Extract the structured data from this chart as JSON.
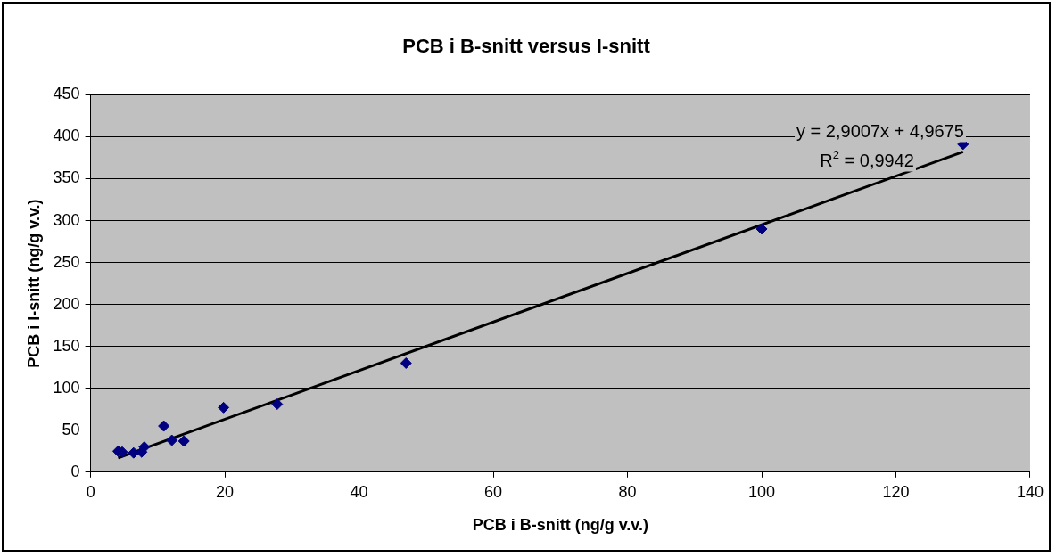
{
  "chart_data": {
    "type": "scatter",
    "title": "PCB i B-snitt versus I-snitt",
    "xlabel": "PCB i B-snitt (ng/g v.v.)",
    "ylabel": "PCB i I-snitt (ng/g v.v.)",
    "series": [
      {
        "color": "#000080",
        "marker": "diamond",
        "x": [
          4.1,
          4.7,
          6.4,
          7.6,
          8.0,
          10.9,
          12.1,
          13.9,
          19.8,
          27.8,
          47,
          100,
          130
        ],
        "values": [
          25,
          24,
          23,
          24,
          30,
          55,
          38,
          37,
          77,
          81,
          130,
          290,
          391
        ]
      },
      {
        "type": "line",
        "color": "#000000",
        "marker": "none",
        "line_style": "solid",
        "x": [
          4.1,
          130
        ],
        "values": [
          17,
          382
        ]
      }
    ],
    "xlim": [
      0,
      140
    ],
    "xticks": [
      0,
      20,
      40,
      60,
      80,
      100,
      120,
      140
    ],
    "ylim": [
      0,
      450
    ],
    "yticks": [
      0,
      50,
      100,
      150,
      200,
      250,
      300,
      350,
      400,
      450
    ],
    "grid": "y",
    "legend": false,
    "annotations": [
      "y = 2,9007x + 4,9675",
      "R$^{2}$ = 0,9942"
    ]
  }
}
